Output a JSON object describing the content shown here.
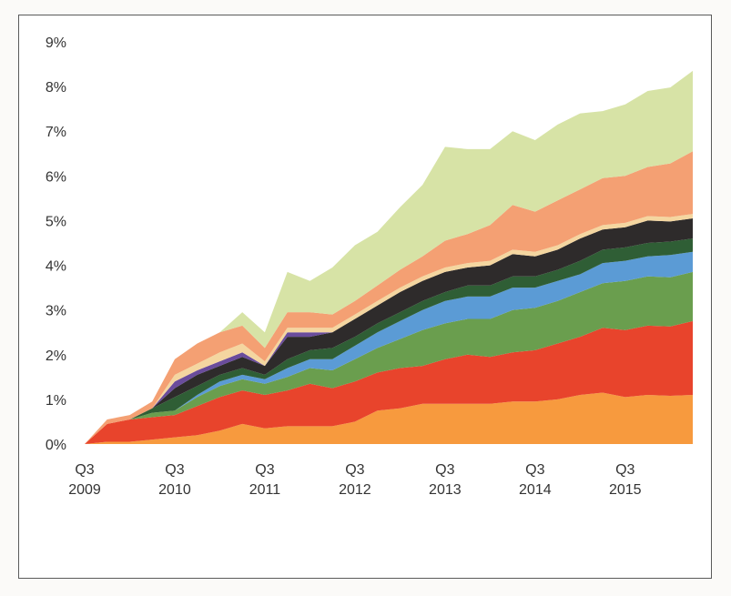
{
  "chart_data": {
    "type": "area",
    "stacked": true,
    "title": "",
    "xlabel": "",
    "ylabel": "",
    "ylim": [
      0,
      9
    ],
    "y_tick_labels": [
      "0%",
      "1%",
      "2%",
      "3%",
      "4%",
      "5%",
      "6%",
      "7%",
      "8%",
      "9%"
    ],
    "x_tick_labels": [
      {
        "at": 0,
        "line1": "Q3",
        "line2": "2009"
      },
      {
        "at": 4,
        "line1": "Q3",
        "line2": "2010"
      },
      {
        "at": 8,
        "line1": "Q3",
        "line2": "2011"
      },
      {
        "at": 12,
        "line1": "Q3",
        "line2": "2012"
      },
      {
        "at": 16,
        "line1": "Q3",
        "line2": "2013"
      },
      {
        "at": 20,
        "line1": "Q3",
        "line2": "2014"
      },
      {
        "at": 24,
        "line1": "Q3",
        "line2": "2015"
      }
    ],
    "x": [
      0,
      1,
      2,
      3,
      4,
      5,
      6,
      7,
      8,
      9,
      10,
      11,
      12,
      13,
      14,
      15,
      16,
      17,
      18,
      19,
      20,
      21,
      22,
      23,
      24,
      25,
      26,
      27
    ],
    "series": [
      {
        "color": "#f79a3e",
        "values": [
          0,
          0.05,
          0.05,
          0.1,
          0.15,
          0.2,
          0.3,
          0.45,
          0.35,
          0.4,
          0.4,
          0.4,
          0.5,
          0.75,
          0.8,
          0.9,
          0.9,
          0.9,
          0.9,
          0.95,
          0.95,
          1.0,
          1.1,
          1.15,
          1.05,
          1.1,
          1.08,
          1.1
        ]
      },
      {
        "color": "#e8442c",
        "values": [
          0,
          0.4,
          0.5,
          0.5,
          0.5,
          0.65,
          0.75,
          0.75,
          0.75,
          0.8,
          0.95,
          0.85,
          0.9,
          0.85,
          0.9,
          0.85,
          1.0,
          1.1,
          1.05,
          1.1,
          1.15,
          1.25,
          1.3,
          1.45,
          1.5,
          1.55,
          1.55,
          1.65
        ]
      },
      {
        "color": "#6a9e4e",
        "values": [
          0,
          0,
          0,
          0.1,
          0.1,
          0.2,
          0.25,
          0.25,
          0.25,
          0.3,
          0.35,
          0.4,
          0.5,
          0.55,
          0.65,
          0.8,
          0.8,
          0.8,
          0.85,
          0.95,
          0.95,
          0.95,
          1.0,
          1.0,
          1.1,
          1.1,
          1.1,
          1.1
        ]
      },
      {
        "color": "#5b9bd5",
        "values": [
          0,
          0,
          0,
          0,
          0,
          0.05,
          0.1,
          0.1,
          0.1,
          0.2,
          0.2,
          0.25,
          0.3,
          0.35,
          0.4,
          0.45,
          0.5,
          0.5,
          0.5,
          0.5,
          0.45,
          0.45,
          0.4,
          0.45,
          0.45,
          0.45,
          0.5,
          0.45
        ]
      },
      {
        "color": "#2f5e35",
        "values": [
          0,
          0,
          0,
          0.1,
          0.3,
          0.2,
          0.15,
          0.15,
          0.1,
          0.2,
          0.2,
          0.25,
          0.2,
          0.2,
          0.2,
          0.2,
          0.2,
          0.25,
          0.25,
          0.25,
          0.25,
          0.25,
          0.3,
          0.3,
          0.3,
          0.3,
          0.3,
          0.3
        ]
      },
      {
        "color": "#2e2b2b",
        "values": [
          0,
          0,
          0,
          0,
          0.2,
          0.25,
          0.2,
          0.25,
          0.2,
          0.5,
          0.3,
          0.35,
          0.4,
          0.4,
          0.45,
          0.45,
          0.45,
          0.4,
          0.45,
          0.5,
          0.45,
          0.45,
          0.5,
          0.45,
          0.45,
          0.5,
          0.45,
          0.45
        ]
      },
      {
        "color": "#6a4c9c",
        "values": [
          0,
          0,
          0,
          0,
          0.15,
          0.1,
          0.1,
          0.1,
          0,
          0.1,
          0.1,
          0,
          0,
          0,
          0,
          0,
          0,
          0,
          0,
          0,
          0,
          0,
          0,
          0,
          0,
          0,
          0,
          0
        ]
      },
      {
        "color": "#f4d6a0",
        "values": [
          0,
          0,
          0,
          0,
          0.15,
          0.15,
          0.2,
          0.2,
          0.1,
          0.1,
          0.1,
          0.1,
          0.1,
          0.1,
          0.1,
          0.1,
          0.1,
          0.1,
          0.1,
          0.1,
          0.1,
          0.1,
          0.1,
          0.1,
          0.1,
          0.1,
          0.1,
          0.1
        ]
      },
      {
        "color": "#f4a073",
        "values": [
          0,
          0.1,
          0.1,
          0.15,
          0.35,
          0.45,
          0.45,
          0.4,
          0.3,
          0.35,
          0.35,
          0.3,
          0.3,
          0.35,
          0.4,
          0.45,
          0.6,
          0.65,
          0.8,
          1.0,
          0.9,
          1.0,
          1.0,
          1.05,
          1.05,
          1.1,
          1.2,
          1.4
        ]
      },
      {
        "color": "#d7e3a6",
        "values": [
          0,
          0,
          0,
          0,
          0,
          0,
          0,
          0.3,
          0.35,
          0.9,
          0.7,
          1.05,
          1.25,
          1.2,
          1.4,
          1.6,
          2.1,
          1.9,
          1.7,
          1.65,
          1.6,
          1.7,
          1.7,
          1.5,
          1.6,
          1.7,
          1.7,
          1.8
        ]
      }
    ]
  }
}
